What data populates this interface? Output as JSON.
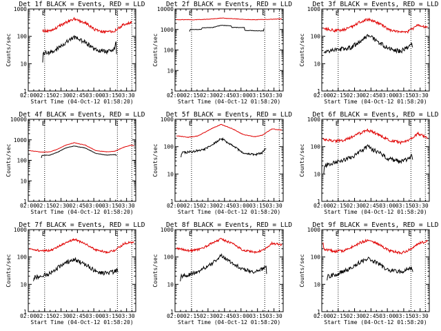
{
  "colors": {
    "events": "#000000",
    "lld": "#e00000",
    "axis": "#000000",
    "background": "#ffffff"
  },
  "chart_data": [
    {
      "type": "line",
      "title": "Det 1f BLACK = Events, RED = LLD",
      "xlabel": "Start Time (04-Oct-12 01:58:20)",
      "ylabel": "Counts/sec",
      "yscale": "log",
      "ylim": [
        1,
        1000
      ],
      "xlim": [
        2.0,
        3.64
      ],
      "xticks": [
        "02:00",
        "02:15",
        "02:30",
        "02:45",
        "03:00",
        "03:15",
        "03:30"
      ],
      "yticks": [
        "1",
        "10",
        "100",
        "1000"
      ],
      "markers": [
        {
          "x": 2.25,
          "label": "E"
        },
        {
          "x": 3.36,
          "label": "E"
        },
        {
          "x": 3.58,
          "label": ""
        }
      ],
      "series": [
        {
          "name": "LLD",
          "color": "#e00000",
          "noise": 0.05,
          "x": [
            2.22,
            2.33,
            2.45,
            2.57,
            2.7,
            2.87,
            3.03,
            3.2,
            3.32,
            3.47,
            3.58
          ],
          "y": [
            160,
            160,
            220,
            320,
            430,
            310,
            170,
            140,
            160,
            280,
            330
          ]
        },
        {
          "name": "Events",
          "color": "#000000",
          "noise": 0.08,
          "x": [
            2.22,
            2.23,
            2.33,
            2.45,
            2.57,
            2.7,
            2.87,
            3.03,
            3.2,
            3.32,
            3.34,
            3.35
          ],
          "y": [
            11,
            25,
            26,
            35,
            60,
            95,
            60,
            32,
            28,
            35,
            60,
            20
          ]
        }
      ]
    },
    {
      "type": "line",
      "title": "Det 2f BLACK = Events, RED = LLD",
      "xlabel": "Start Time (04-Oct-12 01:58:20)",
      "ylabel": "Counts/sec",
      "yscale": "log",
      "ylim": [
        1,
        10000
      ],
      "xlim": [
        2.0,
        3.64
      ],
      "xticks": [
        "02:00",
        "02:15",
        "02:30",
        "02:45",
        "03:00",
        "03:15",
        "03:30"
      ],
      "yticks": [
        "1",
        "10",
        "100",
        "1000",
        "10000"
      ],
      "markers": [
        {
          "x": 2.25,
          "label": "E"
        },
        {
          "x": 3.36,
          "label": "E"
        },
        {
          "x": 3.58,
          "label": ""
        }
      ],
      "series": [
        {
          "name": "LLD",
          "color": "#e00000",
          "noise": 0.01,
          "x": [
            2.02,
            2.33,
            2.45,
            2.57,
            2.7,
            2.87,
            3.03,
            3.2,
            3.4,
            3.62
          ],
          "y": [
            3000,
            3000,
            3100,
            3300,
            3600,
            3400,
            3100,
            3000,
            3100,
            3300
          ]
        },
        {
          "name": "Events",
          "color": "#000000",
          "noise": 0.01,
          "x": [
            2.22,
            2.23,
            2.4,
            2.41,
            2.57,
            2.7,
            2.85,
            2.86,
            3.05,
            3.06,
            3.34,
            3.35
          ],
          "y": [
            800,
            1000,
            1000,
            1200,
            1250,
            1600,
            1500,
            1250,
            1250,
            900,
            850,
            1150
          ]
        }
      ]
    },
    {
      "type": "line",
      "title": "Det 3f BLACK = Events, RED = LLD",
      "xlabel": "Start Time (04-Oct-12 01:58:20)",
      "ylabel": "Counts/sec",
      "yscale": "log",
      "ylim": [
        1,
        1000
      ],
      "xlim": [
        2.0,
        3.64
      ],
      "xticks": [
        "02:00",
        "02:15",
        "02:30",
        "02:45",
        "03:00",
        "03:15",
        "03:30"
      ],
      "yticks": [
        "1",
        "10",
        "100",
        "1000"
      ],
      "markers": [
        {
          "x": 2.25,
          "label": "E"
        },
        {
          "x": 3.36,
          "label": "E"
        },
        {
          "x": 3.58,
          "label": ""
        }
      ],
      "series": [
        {
          "name": "LLD",
          "color": "#e00000",
          "noise": 0.05,
          "x": [
            2.02,
            2.2,
            2.33,
            2.45,
            2.57,
            2.7,
            2.87,
            3.03,
            3.2,
            3.32,
            3.47,
            3.62
          ],
          "y": [
            200,
            160,
            170,
            220,
            320,
            420,
            300,
            170,
            140,
            150,
            260,
            200
          ]
        },
        {
          "name": "Events",
          "color": "#000000",
          "noise": 0.08,
          "x": [
            2.03,
            2.04,
            2.1,
            2.25,
            2.45,
            2.57,
            2.7,
            2.87,
            3.03,
            3.2,
            3.32,
            3.38,
            3.39
          ],
          "y": [
            22,
            30,
            28,
            32,
            40,
            60,
            110,
            60,
            35,
            28,
            40,
            55,
            30
          ]
        }
      ]
    },
    {
      "type": "line",
      "title": "Det 4f BLACK = Events, RED = LLD",
      "xlabel": "Start Time (04-Oct-12 01:58:20)",
      "ylabel": "Counts/sec",
      "yscale": "log",
      "ylim": [
        1,
        10000
      ],
      "xlim": [
        2.0,
        3.64
      ],
      "xticks": [
        "02:00",
        "02:15",
        "02:30",
        "02:45",
        "03:00",
        "03:15",
        "03:30"
      ],
      "yticks": [
        "1",
        "10",
        "100",
        "1000",
        "10000"
      ],
      "markers": [
        {
          "x": 2.25,
          "label": "E"
        },
        {
          "x": 3.36,
          "label": "E"
        },
        {
          "x": 3.58,
          "label": ""
        }
      ],
      "series": [
        {
          "name": "LLD",
          "color": "#e00000",
          "noise": 0.01,
          "x": [
            2.02,
            2.2,
            2.33,
            2.45,
            2.57,
            2.7,
            2.87,
            3.03,
            3.2,
            3.32,
            3.47,
            3.58,
            3.62
          ],
          "y": [
            300,
            250,
            260,
            350,
            550,
            720,
            550,
            300,
            260,
            280,
            450,
            560,
            500
          ]
        },
        {
          "name": "Events",
          "color": "#000000",
          "noise": 0.01,
          "x": [
            2.2,
            2.21,
            2.33,
            2.45,
            2.57,
            2.7,
            2.87,
            3.03,
            3.2,
            3.34,
            3.35
          ],
          "y": [
            130,
            175,
            180,
            250,
            400,
            500,
            400,
            220,
            180,
            190,
            130
          ]
        }
      ]
    },
    {
      "type": "line",
      "title": "Det 5f BLACK = Events, RED = LLD",
      "xlabel": "Start Time (04-Oct-12 01:58:20)",
      "ylabel": "Counts/sec",
      "yscale": "log",
      "ylim": [
        1,
        1000
      ],
      "xlim": [
        2.0,
        3.64
      ],
      "xticks": [
        "02:00",
        "02:15",
        "02:30",
        "02:45",
        "03:00",
        "03:15",
        "03:30"
      ],
      "yticks": [
        "1",
        "10",
        "100",
        "1000"
      ],
      "markers": [
        {
          "x": 2.25,
          "label": "E"
        },
        {
          "x": 3.36,
          "label": "E"
        },
        {
          "x": 3.58,
          "label": ""
        }
      ],
      "series": [
        {
          "name": "LLD",
          "color": "#e00000",
          "noise": 0.01,
          "x": [
            2.02,
            2.2,
            2.33,
            2.45,
            2.57,
            2.7,
            2.87,
            3.03,
            3.2,
            3.32,
            3.47,
            3.62
          ],
          "y": [
            250,
            220,
            240,
            330,
            480,
            650,
            450,
            280,
            230,
            260,
            450,
            400
          ]
        },
        {
          "name": "Events",
          "color": "#000000",
          "noise": 0.04,
          "x": [
            2.09,
            2.1,
            2.25,
            2.45,
            2.57,
            2.7,
            2.87,
            3.03,
            3.2,
            3.32,
            3.38,
            3.39
          ],
          "y": [
            40,
            60,
            65,
            80,
            120,
            200,
            110,
            60,
            50,
            60,
            90,
            60
          ]
        }
      ]
    },
    {
      "type": "line",
      "title": "Det 6f BLACK = Events, RED = LLD",
      "xlabel": "Start Time (04-Oct-12 01:58:20)",
      "ylabel": "Counts/sec",
      "yscale": "log",
      "ylim": [
        1,
        1000
      ],
      "xlim": [
        2.0,
        3.64
      ],
      "xticks": [
        "02:00",
        "02:15",
        "02:30",
        "02:45",
        "03:00",
        "03:15",
        "03:30"
      ],
      "yticks": [
        "1",
        "10",
        "100",
        "1000"
      ],
      "markers": [
        {
          "x": 2.25,
          "label": "E"
        },
        {
          "x": 3.36,
          "label": "E"
        },
        {
          "x": 3.58,
          "label": ""
        }
      ],
      "series": [
        {
          "name": "LLD",
          "color": "#e00000",
          "noise": 0.05,
          "x": [
            2.02,
            2.2,
            2.33,
            2.45,
            2.57,
            2.7,
            2.87,
            3.03,
            3.2,
            3.32,
            3.47,
            3.62
          ],
          "y": [
            190,
            160,
            170,
            220,
            300,
            400,
            280,
            170,
            140,
            160,
            300,
            200
          ]
        },
        {
          "name": "Events",
          "color": "#000000",
          "noise": 0.08,
          "x": [
            2.03,
            2.04,
            2.15,
            2.3,
            2.45,
            2.57,
            2.7,
            2.87,
            3.03,
            3.2,
            3.32,
            3.38,
            3.39
          ],
          "y": [
            10,
            20,
            25,
            30,
            40,
            60,
            100,
            60,
            35,
            28,
            35,
            50,
            28
          ]
        }
      ]
    },
    {
      "type": "line",
      "title": "Det 7f BLACK = Events, RED = LLD",
      "xlabel": "Start Time (04-Oct-12 01:58:20)",
      "ylabel": "Counts/sec",
      "yscale": "log",
      "ylim": [
        1,
        1000
      ],
      "xlim": [
        2.0,
        3.64
      ],
      "xticks": [
        "02:00",
        "02:15",
        "02:30",
        "02:45",
        "03:00",
        "03:15",
        "03:30"
      ],
      "yticks": [
        "1",
        "10",
        "100",
        "1000"
      ],
      "markers": [
        {
          "x": 2.25,
          "label": "E"
        },
        {
          "x": 3.36,
          "label": "E"
        },
        {
          "x": 3.58,
          "label": ""
        }
      ],
      "series": [
        {
          "name": "LLD",
          "color": "#e00000",
          "noise": 0.04,
          "x": [
            2.02,
            2.2,
            2.33,
            2.45,
            2.57,
            2.7,
            2.87,
            3.03,
            3.2,
            3.32,
            3.47,
            3.62
          ],
          "y": [
            200,
            170,
            170,
            230,
            330,
            450,
            300,
            180,
            150,
            170,
            320,
            350
          ]
        },
        {
          "name": "Events",
          "color": "#000000",
          "noise": 0.08,
          "x": [
            2.08,
            2.09,
            2.2,
            2.33,
            2.45,
            2.57,
            2.7,
            2.87,
            3.03,
            3.2,
            3.32,
            3.38
          ],
          "y": [
            12,
            18,
            20,
            25,
            40,
            60,
            80,
            55,
            30,
            25,
            30,
            35
          ]
        }
      ]
    },
    {
      "type": "line",
      "title": "Det 8f BLACK = Events, RED = LLD",
      "xlabel": "Start Time (04-Oct-12 01:58:20)",
      "ylabel": "Counts/sec",
      "yscale": "log",
      "ylim": [
        1,
        1000
      ],
      "xlim": [
        2.0,
        3.64
      ],
      "xticks": [
        "02:00",
        "02:15",
        "02:30",
        "02:45",
        "03:00",
        "03:15",
        "03:30"
      ],
      "yticks": [
        "1",
        "10",
        "100",
        "1000"
      ],
      "markers": [
        {
          "x": 2.25,
          "label": "E"
        },
        {
          "x": 3.36,
          "label": "E"
        },
        {
          "x": 3.58,
          "label": ""
        }
      ],
      "series": [
        {
          "name": "LLD",
          "color": "#e00000",
          "noise": 0.04,
          "x": [
            2.02,
            2.2,
            2.33,
            2.45,
            2.57,
            2.7,
            2.87,
            3.03,
            3.2,
            3.32,
            3.47,
            3.62
          ],
          "y": [
            210,
            170,
            180,
            230,
            330,
            450,
            310,
            180,
            150,
            170,
            320,
            280
          ]
        },
        {
          "name": "Events",
          "color": "#000000",
          "noise": 0.07,
          "x": [
            2.08,
            2.09,
            2.2,
            2.33,
            2.45,
            2.57,
            2.7,
            2.87,
            3.03,
            3.2,
            3.32,
            3.38,
            3.39
          ],
          "y": [
            12,
            20,
            22,
            28,
            40,
            60,
            110,
            60,
            35,
            28,
            35,
            45,
            25
          ]
        }
      ]
    },
    {
      "type": "line",
      "title": "Det 9f BLACK = Events, RED = LLD",
      "xlabel": "Start Time (04-Oct-12 01:58:20)",
      "ylabel": "Counts/sec",
      "yscale": "log",
      "ylim": [
        1,
        1000
      ],
      "xlim": [
        2.0,
        3.64
      ],
      "xticks": [
        "02:00",
        "02:15",
        "02:30",
        "02:45",
        "03:00",
        "03:15",
        "03:30"
      ],
      "yticks": [
        "1",
        "10",
        "100",
        "1000"
      ],
      "markers": [
        {
          "x": 2.25,
          "label": "E"
        },
        {
          "x": 3.36,
          "label": "E"
        },
        {
          "x": 3.58,
          "label": ""
        }
      ],
      "series": [
        {
          "name": "LLD",
          "color": "#e00000",
          "noise": 0.05,
          "x": [
            2.02,
            2.2,
            2.33,
            2.45,
            2.57,
            2.7,
            2.87,
            3.03,
            3.2,
            3.32,
            3.47,
            3.62
          ],
          "y": [
            200,
            160,
            170,
            230,
            320,
            420,
            290,
            170,
            140,
            170,
            320,
            380
          ]
        },
        {
          "name": "Events",
          "color": "#000000",
          "noise": 0.08,
          "x": [
            2.08,
            2.09,
            2.2,
            2.33,
            2.45,
            2.57,
            2.7,
            2.87,
            3.03,
            3.2,
            3.32,
            3.38,
            3.39
          ],
          "y": [
            14,
            20,
            22,
            30,
            40,
            60,
            90,
            55,
            32,
            28,
            35,
            40,
            25
          ]
        }
      ]
    }
  ]
}
